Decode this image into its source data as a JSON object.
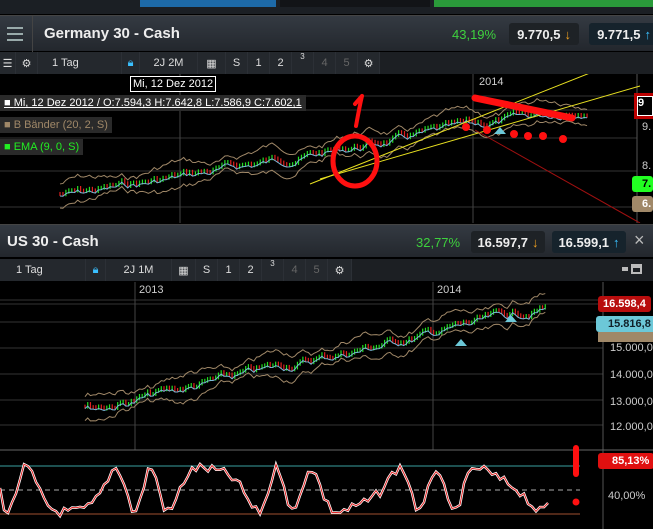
{
  "germany": {
    "title": "Germany 30 - Cash",
    "change": "43,19%",
    "sell": "9.770,5",
    "buy": "9.771,5",
    "toolbar": {
      "interval": "1 Tag",
      "range": "2J 2M",
      "s": "S",
      "b1": "1",
      "b2": "2",
      "b3": "3",
      "b4": "4",
      "b5": "5"
    },
    "tooltip_date": "Mi, 12 Dez 2012",
    "ohlc": "Mi, 12 Dez 2012 / O:7.594,3  H:7.642,8  L:7.586,9  C:7.602,1",
    "indicators": [
      "B Bänder (20, 2, S)",
      "EMA (9, 0, S)"
    ],
    "year_label": "2014",
    "axis": [
      "9",
      "9.",
      "8.",
      "7.",
      "6."
    ]
  },
  "us": {
    "title": "US 30 - Cash",
    "change": "32,77%",
    "sell": "16.597,7",
    "buy": "16.599,1",
    "toolbar": {
      "interval": "1 Tag",
      "range": "2J 1M",
      "s": "S",
      "b1": "1",
      "b2": "2",
      "b3": "3",
      "b4": "4",
      "b5": "5"
    },
    "years": [
      "2013",
      "2014"
    ],
    "price_tag": "16.598,4",
    "ema_tag": "15.816,8",
    "axis": [
      "15.000,0",
      "14.000,0",
      "13.000,0",
      "12.000,0"
    ],
    "osc_tag": "85,13%",
    "osc_axis": "40,00%"
  },
  "colors": {
    "up": "#22dd22",
    "down": "#e02020",
    "band": "#a08868",
    "ema": "#7ab8d8",
    "annotation": "#ff1010",
    "positive": "#3ed13e"
  }
}
